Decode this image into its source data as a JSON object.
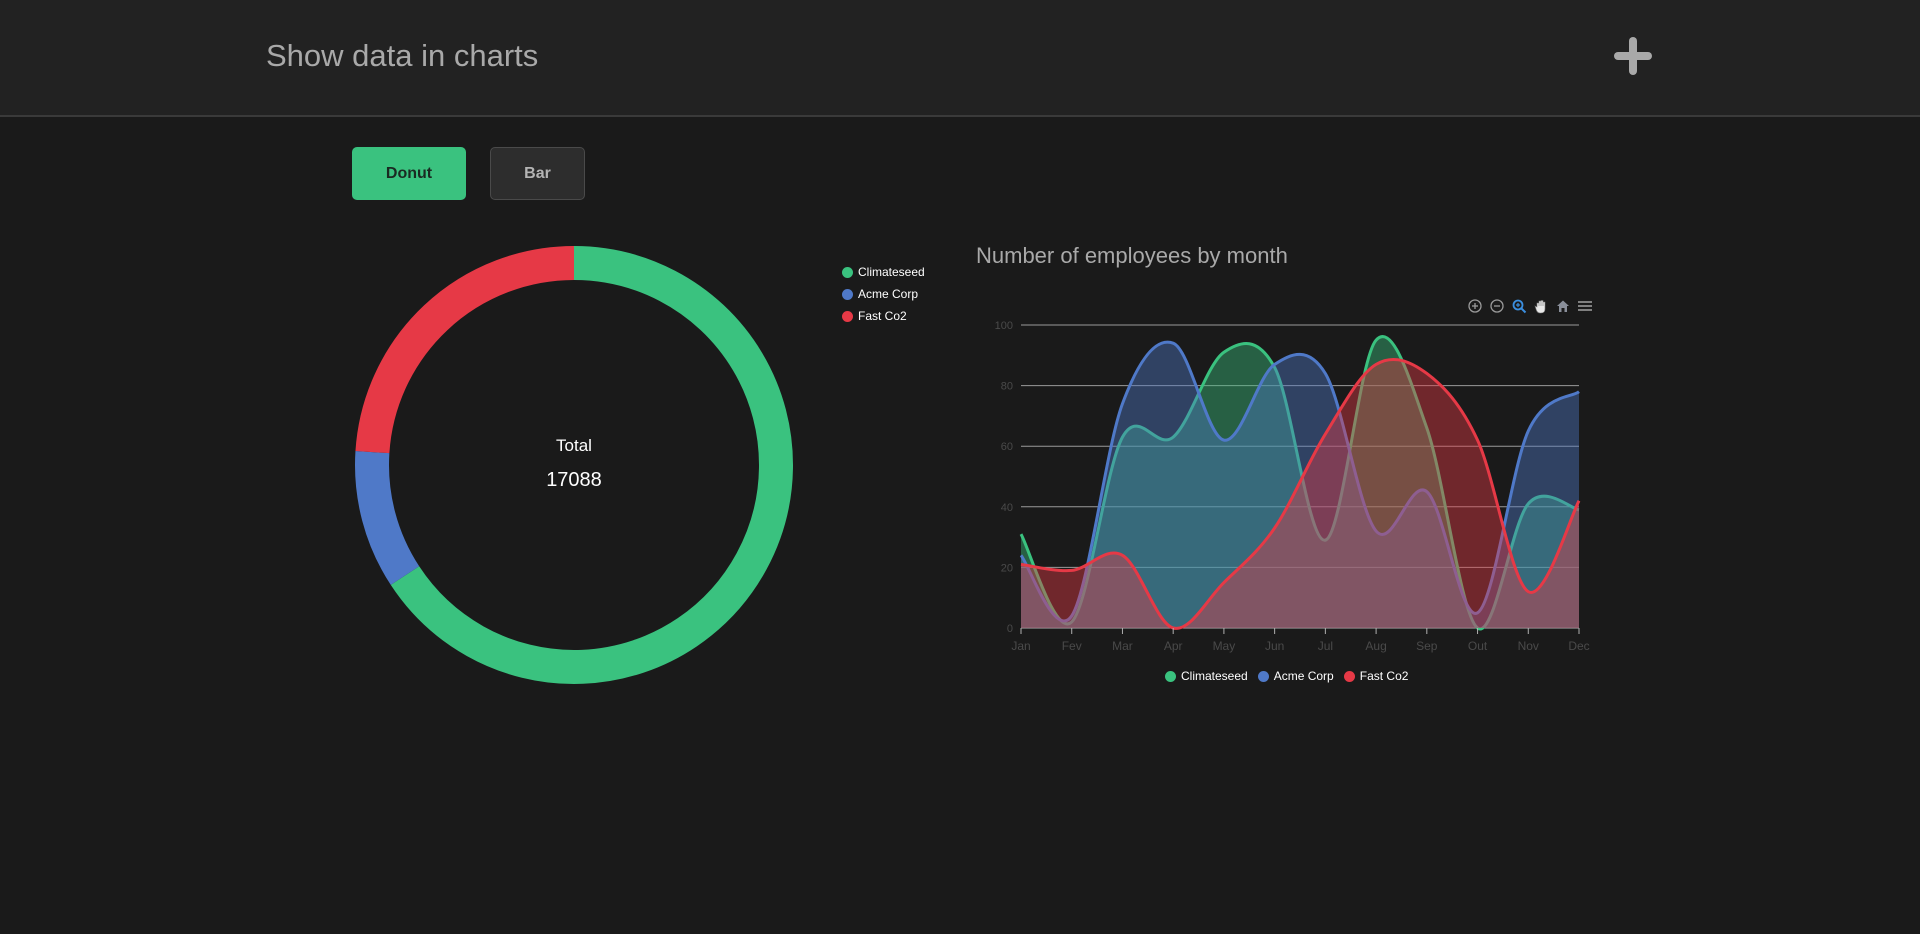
{
  "header": {
    "title": "Show data in charts",
    "add_icon": "plus-icon"
  },
  "toggle": {
    "donut_label": "Donut",
    "bar_label": "Bar",
    "active": "Donut"
  },
  "colors": {
    "Climateseed": "#3ac27f",
    "Acme Corp": "#4f79c8",
    "Fast Co2": "#e63946",
    "accent": "#3ac27f"
  },
  "toolbar": {
    "icons": [
      "zoom-in-icon",
      "zoom-out-icon",
      "selection-zoom-icon",
      "pan-icon",
      "reset-home-icon",
      "menu-icon"
    ]
  },
  "chart_data": [
    {
      "type": "pie",
      "variant": "donut",
      "center_label": "Total",
      "center_value": "17088",
      "slices": [
        {
          "name": "Climateseed",
          "value": 11240
        },
        {
          "name": "Acme Corp",
          "value": 1750
        },
        {
          "name": "Fast Co2",
          "value": 4098
        }
      ],
      "legend": [
        "Climateseed",
        "Acme Corp",
        "Fast Co2"
      ],
      "legend_position": "top-right"
    },
    {
      "type": "area",
      "title": "Number of employees by month",
      "categories": [
        "Jan",
        "Fev",
        "Mar",
        "Apr",
        "May",
        "Jun",
        "Jul",
        "Aug",
        "Sep",
        "Out",
        "Nov",
        "Dec"
      ],
      "series": [
        {
          "name": "Climateseed",
          "values": [
            31,
            2,
            63,
            63,
            91,
            86,
            29,
            95,
            66,
            0,
            41,
            39
          ]
        },
        {
          "name": "Acme Corp",
          "values": [
            24,
            4,
            74,
            94,
            62,
            87,
            84,
            32,
            45,
            5,
            65,
            78
          ]
        },
        {
          "name": "Fast Co2",
          "values": [
            21,
            19,
            24,
            0,
            15,
            33,
            64,
            87,
            84,
            62,
            12,
            42
          ]
        }
      ],
      "yticks": [
        0,
        20,
        40,
        60,
        80,
        100
      ],
      "ylim": [
        0,
        100
      ],
      "grid": true,
      "legend": [
        "Climateseed",
        "Acme Corp",
        "Fast Co2"
      ],
      "legend_position": "bottom"
    }
  ]
}
